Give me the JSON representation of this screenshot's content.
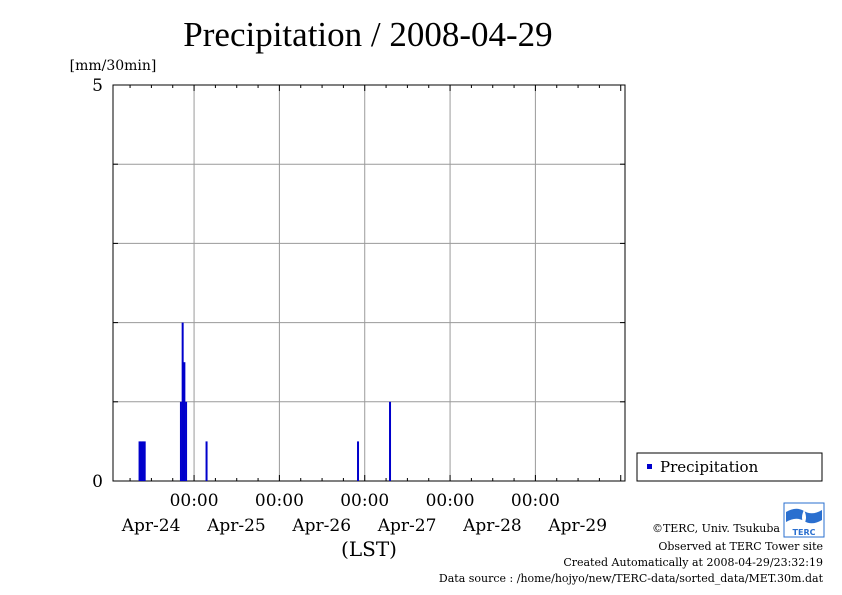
{
  "chart_data": {
    "type": "bar",
    "title": "Precipitation / 2008-04-29",
    "yunit": "[mm/30min]",
    "xlabel": "(LST)",
    "ylim": [
      0,
      5
    ],
    "ytick_labels": [
      "0",
      "5"
    ],
    "x_range_days": [
      -0.95,
      5.05
    ],
    "x_major_ticks": [
      {
        "day": 0,
        "time": "00:00",
        "date": "Apr-24"
      },
      {
        "day": 1,
        "time": "00:00",
        "date": "Apr-25"
      },
      {
        "day": 2,
        "time": "00:00",
        "date": "Apr-26"
      },
      {
        "day": 3,
        "time": "00:00",
        "date": "Apr-27"
      },
      {
        "day": 4,
        "time": "00:00",
        "date": "Apr-28"
      },
      {
        "day": null,
        "time": "",
        "date": "Apr-29"
      }
    ],
    "series": [
      {
        "name": "Precipitation",
        "color": "#0000cc",
        "points": [
          {
            "x": -0.64,
            "y": 0.5
          },
          {
            "x": -0.62,
            "y": 0.5
          },
          {
            "x": -0.6,
            "y": 0.5
          },
          {
            "x": -0.58,
            "y": 0.5
          },
          {
            "x": -0.155,
            "y": 1.0
          },
          {
            "x": -0.135,
            "y": 2.0
          },
          {
            "x": -0.115,
            "y": 1.5
          },
          {
            "x": -0.095,
            "y": 1.0
          },
          {
            "x": 0.145,
            "y": 0.5
          },
          {
            "x": 1.92,
            "y": 0.5
          },
          {
            "x": 2.295,
            "y": 1.0
          }
        ]
      }
    ],
    "grid": true,
    "legend_position": "right"
  },
  "credits": {
    "copyright": "©TERC, Univ. Tsukuba",
    "site": "Observed at TERC Tower site",
    "created": "Created Automatically at 2008-04-29/23:32:19",
    "source": "Data source : /home/hojyo/new/TERC-data/sorted_data/MET.30m.dat",
    "logo_text": "TERC"
  }
}
